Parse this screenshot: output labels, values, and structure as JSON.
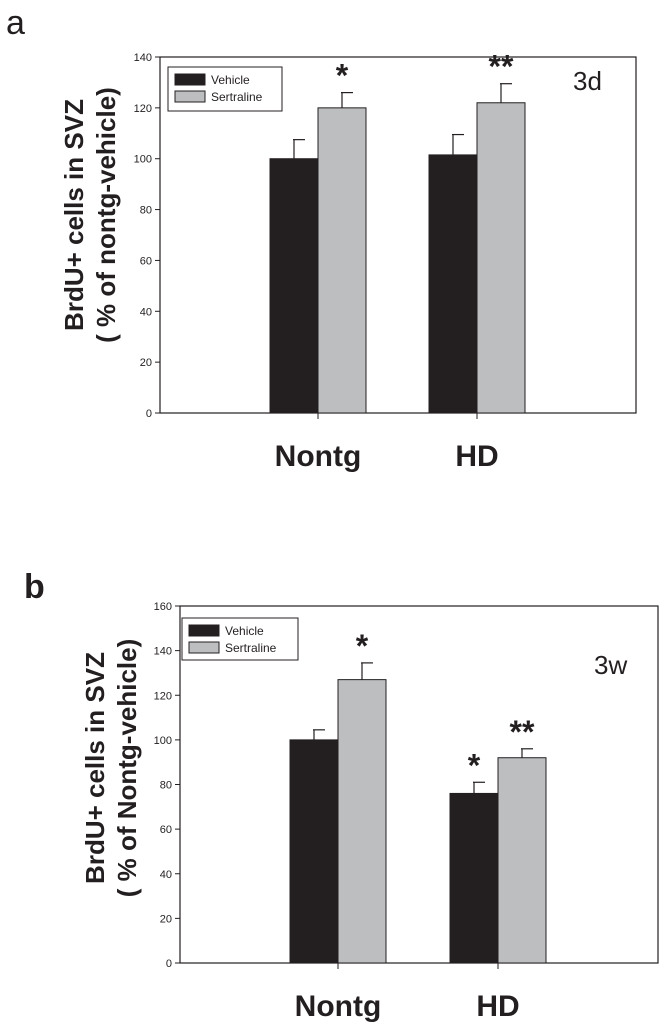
{
  "chart_data": [
    {
      "panel_label": "a",
      "type": "bar",
      "corner_label": "3d",
      "ylabel_line1": "BrdU+ cells in SVZ",
      "ylabel_line2": "( % of nontg-vehicle)",
      "ylim": [
        0,
        140
      ],
      "yticks": [
        0,
        20,
        40,
        60,
        80,
        100,
        120,
        140
      ],
      "categories": [
        "Nontg",
        "HD"
      ],
      "series": [
        {
          "name": "Vehicle",
          "color": "#231f20",
          "values": [
            100,
            101.5
          ],
          "errors": [
            7.5,
            8
          ],
          "significance": [
            "",
            ""
          ]
        },
        {
          "name": "Sertraline",
          "color": "#bcbec0",
          "values": [
            120,
            122
          ],
          "errors": [
            6,
            7.5
          ],
          "significance": [
            "*",
            "**"
          ]
        }
      ],
      "legend": {
        "position": "top-left"
      }
    },
    {
      "panel_label": "b",
      "type": "bar",
      "corner_label": "3w",
      "ylabel_line1": "BrdU+ cells in SVZ",
      "ylabel_line2": "( % of Nontg-vehicle)",
      "ylim": [
        0,
        160
      ],
      "yticks": [
        0,
        20,
        40,
        60,
        80,
        100,
        120,
        140,
        160
      ],
      "categories": [
        "Nontg",
        "HD"
      ],
      "series": [
        {
          "name": "Vehicle",
          "color": "#231f20",
          "values": [
            100,
            76
          ],
          "errors": [
            4.5,
            5
          ],
          "significance": [
            "",
            "*"
          ]
        },
        {
          "name": "Sertraline",
          "color": "#bcbec0",
          "values": [
            127,
            92
          ],
          "errors": [
            7.5,
            4
          ],
          "significance": [
            "*",
            "**"
          ]
        }
      ],
      "legend": {
        "position": "top-left"
      }
    }
  ]
}
